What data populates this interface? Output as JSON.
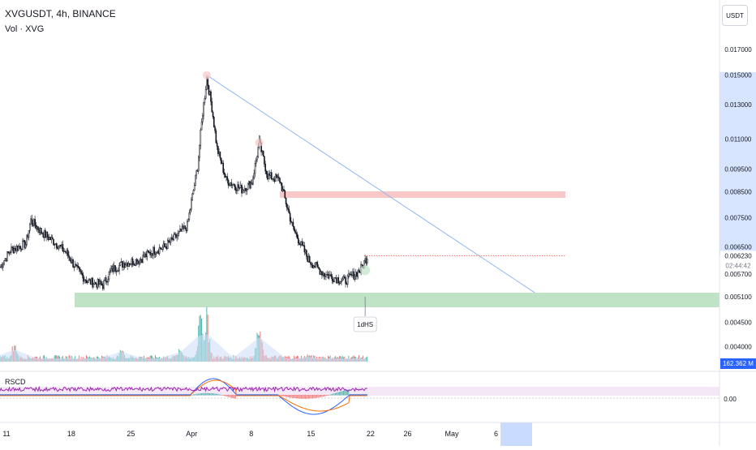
{
  "header": {
    "symbol_line": "XVGUSDT, 4h, BINANCE",
    "volume_line": "Vol · XVG",
    "currency_button": "USDT"
  },
  "indicator": {
    "label": "RSCD",
    "zero_tick": "0.00"
  },
  "colors": {
    "up": "#26a69a",
    "down": "#ef5350",
    "candle": "#131722",
    "trend": "#90b8f0",
    "resistance": "#f8c8c8",
    "support": "#bfe3c4",
    "current": "#131722",
    "axis_highlight": "#c9dcff",
    "vol_area": "#cfe0f7"
  },
  "chart_data": {
    "type": "candlestick",
    "symbol": "XVGUSDT",
    "interval": "4h",
    "exchange": "BINANCE",
    "ylim": [
      0.0035,
      0.0178
    ],
    "price_ticks": [
      "0.017000",
      "0.015000",
      "0.013000",
      "0.011000",
      "0.009500",
      "0.008500",
      "0.007500",
      "0.006500",
      "0.005700",
      "0.005100",
      "0.004500",
      "0.004000"
    ],
    "current_price": "0.006230",
    "countdown": "02:44:42",
    "volume_value": "162.362 M",
    "x_ticks": [
      "11",
      "18",
      "25",
      "Apr",
      "8",
      "15",
      "22",
      "26",
      "May",
      "6"
    ],
    "x_tick_bars": [
      0,
      63,
      121,
      180,
      238,
      296,
      354,
      390,
      433,
      476
    ],
    "bar_count": 478,
    "closes": [
      [
        0,
        0.0059
      ],
      [
        10,
        0.0064
      ],
      [
        25,
        0.0066
      ],
      [
        30,
        0.0074
      ],
      [
        40,
        0.007
      ],
      [
        55,
        0.0066
      ],
      [
        65,
        0.0063
      ],
      [
        75,
        0.0058
      ],
      [
        85,
        0.0055
      ],
      [
        100,
        0.0054
      ],
      [
        108,
        0.0058
      ],
      [
        120,
        0.006
      ],
      [
        135,
        0.0061
      ],
      [
        150,
        0.0064
      ],
      [
        160,
        0.0065
      ],
      [
        170,
        0.0068
      ],
      [
        182,
        0.0072
      ],
      [
        192,
        0.0096
      ],
      [
        197,
        0.0125
      ],
      [
        201,
        0.0148
      ],
      [
        206,
        0.0128
      ],
      [
        211,
        0.0105
      ],
      [
        220,
        0.009
      ],
      [
        235,
        0.0086
      ],
      [
        245,
        0.0089
      ],
      [
        252,
        0.0108
      ],
      [
        260,
        0.0092
      ],
      [
        272,
        0.009
      ],
      [
        285,
        0.0071
      ],
      [
        300,
        0.0061
      ],
      [
        315,
        0.0057
      ],
      [
        335,
        0.0055
      ],
      [
        350,
        0.0058
      ],
      [
        357,
        0.0062
      ]
    ],
    "volume_peaks": [
      [
        14,
        0.3
      ],
      [
        118,
        0.25
      ],
      [
        175,
        0.24
      ],
      [
        195,
        0.68
      ],
      [
        201,
        0.7
      ],
      [
        252,
        0.6
      ],
      [
        300,
        0.12
      ]
    ],
    "annotations": {
      "pattern_label": "1dHS"
    }
  }
}
